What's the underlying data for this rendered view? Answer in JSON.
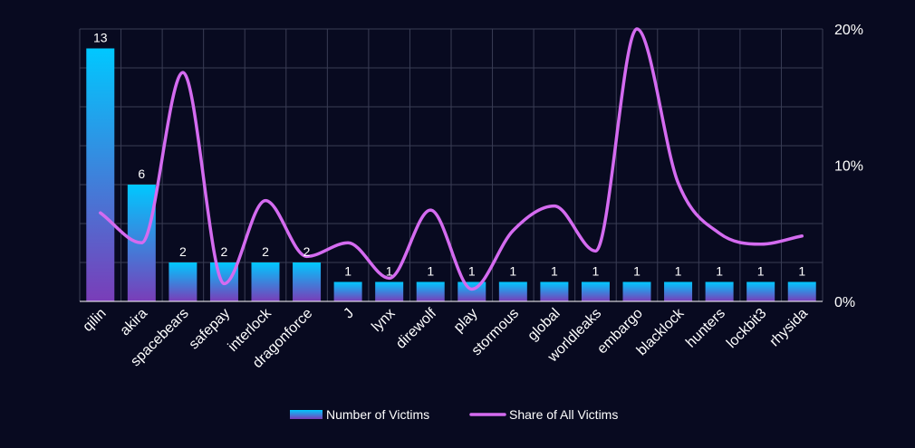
{
  "colors": {
    "background": "#080a20",
    "grid": "#3a3d55",
    "bar_top": "#00c8ff",
    "bar_bottom": "#7a3db8",
    "line": "#d46bf0",
    "text": "#ffffff"
  },
  "chart_data": {
    "type": "bar",
    "categories": [
      "qilin",
      "akira",
      "spacebears",
      "safepay",
      "interlock",
      "dragonforce",
      "J",
      "lynx",
      "direwolf",
      "play",
      "stormous",
      "global",
      "worldleaks",
      "embargo",
      "blacklock",
      "hunters",
      "lockbit3",
      "rhysida"
    ],
    "series": [
      {
        "name": "Number of Victims",
        "type": "bar",
        "axis": "left",
        "values": [
          13,
          6,
          2,
          2,
          2,
          2,
          1,
          1,
          1,
          1,
          1,
          1,
          1,
          1,
          1,
          1,
          1,
          1
        ],
        "data_labels": [
          "13",
          "6",
          "2",
          "2",
          "2",
          "2",
          "1",
          "1",
          "1",
          "1",
          "1",
          "1",
          "1",
          "1",
          "1",
          "1",
          "1",
          "1"
        ]
      },
      {
        "name": "Share of All Victims",
        "type": "line",
        "axis": "right",
        "smooth": true,
        "values": [
          6.5,
          4.3,
          16.8,
          1.3,
          7.4,
          3.3,
          4.3,
          1.7,
          6.7,
          0.9,
          5.2,
          7.0,
          3.7,
          20.0,
          8.7,
          5.0,
          4.2,
          4.8
        ]
      }
    ],
    "y_left": {
      "min": 0,
      "max": 14,
      "ticks": [
        0,
        2,
        4,
        6,
        8,
        10,
        12,
        14
      ],
      "tick_labels_shown": false
    },
    "y_right": {
      "min": 0,
      "max": 20,
      "tick_values": [
        0,
        10,
        20
      ],
      "tick_labels": [
        "0%",
        "10%",
        "20%"
      ]
    },
    "grid": true,
    "legend_position": "bottom-center",
    "legend": [
      {
        "label": "Number of Victims",
        "type": "bar"
      },
      {
        "label": "Share of All Victims",
        "type": "line"
      }
    ]
  }
}
